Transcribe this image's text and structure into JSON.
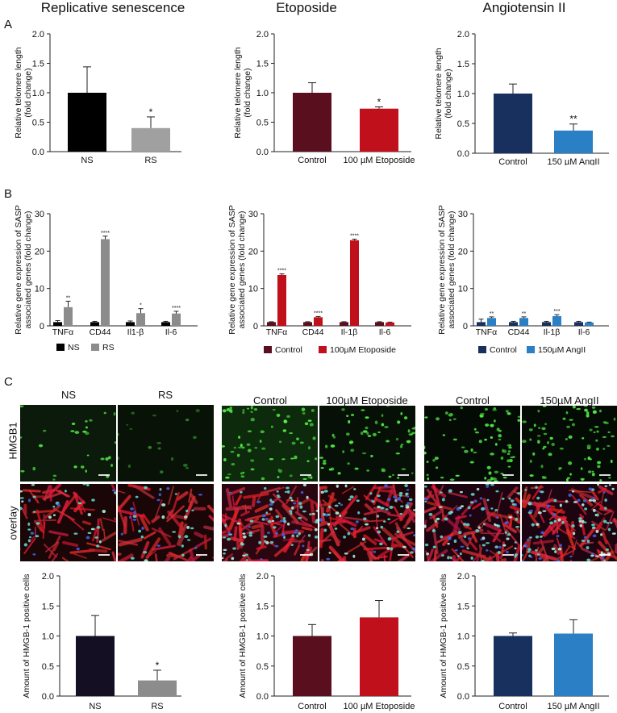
{
  "columns": [
    "Replicative senescence",
    "Etoposide",
    "Angiotensin II"
  ],
  "panel_letters": [
    "A",
    "B",
    "C"
  ],
  "colors": {
    "ns": "#000000",
    "rs": "#a0a0a0",
    "rs_b": "#8c8c8c",
    "eto_control": "#5a0f1e",
    "eto_treat": "#c0101c",
    "ang_control": "#17305e",
    "ang_treat": "#2b7fc4",
    "hmgb_ns": "#150f24",
    "hmgb_rs": "#8c8c8c"
  },
  "micro": {
    "row_labels": [
      "HMGB1",
      "overlay"
    ],
    "headers": [
      "NS",
      "RS",
      "Control",
      "100µM Etoposide",
      "Control",
      "150µM AngII"
    ]
  },
  "chart_data": [
    {
      "type": "bar",
      "panel": "A",
      "ylabel": "Relative telomere length\n(fold change)",
      "ylim": [
        0,
        2.0
      ],
      "ticks": [
        "0.0",
        "0.5",
        "1.0",
        "1.5",
        "2.0"
      ],
      "categories": [
        "NS",
        "RS"
      ],
      "values": [
        1.0,
        0.4
      ],
      "errors": [
        0.44,
        0.19
      ],
      "significance": [
        "",
        "*"
      ],
      "colors": [
        "ns",
        "rs"
      ]
    },
    {
      "type": "bar",
      "panel": "A",
      "ylabel": "Relative telomere length\n(fold change)",
      "ylim": [
        0,
        2.0
      ],
      "ticks": [
        "0.0",
        "0.5",
        "1.0",
        "1.5",
        "2.0"
      ],
      "categories": [
        "Control",
        "100 µM Etoposide"
      ],
      "values": [
        1.0,
        0.73
      ],
      "errors": [
        0.17,
        0.03
      ],
      "significance": [
        "",
        "*"
      ],
      "colors": [
        "eto_control",
        "eto_treat"
      ]
    },
    {
      "type": "bar",
      "panel": "A",
      "ylabel": "Relative telomere length\n(fold change)",
      "ylim": [
        0,
        2.0
      ],
      "ticks": [
        "0.0",
        "0.5",
        "1.0",
        "1.5",
        "2.0"
      ],
      "categories": [
        "Control",
        "150 µM AngII"
      ],
      "values": [
        1.0,
        0.38
      ],
      "errors": [
        0.16,
        0.11
      ],
      "significance": [
        "",
        "**"
      ],
      "colors": [
        "ang_control",
        "ang_treat"
      ]
    },
    {
      "type": "bar",
      "panel": "B",
      "ylabel": "Relative gene expression of SASP\nassociated genes (fold change)",
      "ylim": [
        0,
        30
      ],
      "ticks": [
        "0",
        "10",
        "20",
        "30"
      ],
      "categories": [
        "TNFα",
        "CD44",
        "Il1-β",
        "Il-6"
      ],
      "series": [
        {
          "name": "NS",
          "values": [
            1.0,
            1.0,
            1.0,
            1.0
          ],
          "errors": [
            0.4,
            0.2,
            0.3,
            0.2
          ],
          "color": "ns"
        },
        {
          "name": "RS",
          "values": [
            5.0,
            23.2,
            3.4,
            3.3
          ],
          "errors": [
            1.6,
            0.8,
            1.2,
            0.6
          ],
          "color": "rs_b"
        }
      ],
      "significance": [
        "**",
        "****",
        "*",
        "****"
      ]
    },
    {
      "type": "bar",
      "panel": "B",
      "ylabel": "Relative gene expression of SASP\nassociated genes (fold change)",
      "ylim": [
        0,
        30
      ],
      "ticks": [
        "0",
        "10",
        "20",
        "30"
      ],
      "categories": [
        "TNFα",
        "CD44",
        "Il-1β",
        "Il-6"
      ],
      "series": [
        {
          "name": "Control",
          "values": [
            1.0,
            1.0,
            1.0,
            1.0
          ],
          "errors": [
            0.1,
            0.1,
            0.1,
            0.1
          ],
          "color": "eto_control"
        },
        {
          "name": "100µM Etoposide",
          "values": [
            13.6,
            2.3,
            22.9,
            0.9
          ],
          "errors": [
            0.3,
            0.2,
            0.3,
            0.1
          ],
          "color": "eto_treat"
        }
      ],
      "significance": [
        "****",
        "****",
        "****",
        ""
      ]
    },
    {
      "type": "bar",
      "panel": "B",
      "ylabel": "Relative gene expression of SASP\nassociated genes (fold change)",
      "ylim": [
        0,
        30
      ],
      "ticks": [
        "0",
        "10",
        "20",
        "30"
      ],
      "categories": [
        "TNFα",
        "CD44",
        "Il-1β",
        "Il-6"
      ],
      "series": [
        {
          "name": "Control",
          "values": [
            1.0,
            1.0,
            1.0,
            1.0
          ],
          "errors": [
            0.8,
            0.2,
            0.2,
            0.2
          ],
          "color": "ang_control"
        },
        {
          "name": "150µM AngII",
          "values": [
            2.1,
            2.1,
            2.6,
            0.9
          ],
          "errors": [
            0.3,
            0.3,
            0.4,
            0.1
          ],
          "color": "ang_treat"
        }
      ],
      "significance": [
        "**",
        "**",
        "***",
        ""
      ]
    },
    {
      "type": "bar",
      "panel": "C",
      "ylabel": "Amount of HMGB-1 positive cells",
      "ylim": [
        0,
        2.0
      ],
      "ticks": [
        "0.0",
        "0.5",
        "1.0",
        "1.5",
        "2.0"
      ],
      "categories": [
        "NS",
        "RS"
      ],
      "values": [
        1.0,
        0.26
      ],
      "errors": [
        0.34,
        0.17
      ],
      "significance": [
        "",
        "*"
      ],
      "colors": [
        "hmgb_ns",
        "hmgb_rs"
      ]
    },
    {
      "type": "bar",
      "panel": "C",
      "ylabel": "Amount of HMGB-1 positive cells",
      "ylim": [
        0,
        2.0
      ],
      "ticks": [
        "0.0",
        "0.5",
        "1.0",
        "1.5",
        "2.0"
      ],
      "categories": [
        "Control",
        "100 µM Etoposide"
      ],
      "values": [
        1.0,
        1.31
      ],
      "errors": [
        0.19,
        0.28
      ],
      "significance": [
        "",
        ""
      ],
      "colors": [
        "eto_control",
        "eto_treat"
      ]
    },
    {
      "type": "bar",
      "panel": "C",
      "ylabel": "Amount of HMGB-1 positive cells",
      "ylim": [
        0,
        2.0
      ],
      "ticks": [
        "0.0",
        "0.5",
        "1.0",
        "1.5",
        "2.0"
      ],
      "categories": [
        "Control",
        "150 µM AngII"
      ],
      "values": [
        1.0,
        1.04
      ],
      "errors": [
        0.05,
        0.23
      ],
      "significance": [
        "",
        ""
      ],
      "colors": [
        "ang_control",
        "ang_treat"
      ]
    }
  ]
}
